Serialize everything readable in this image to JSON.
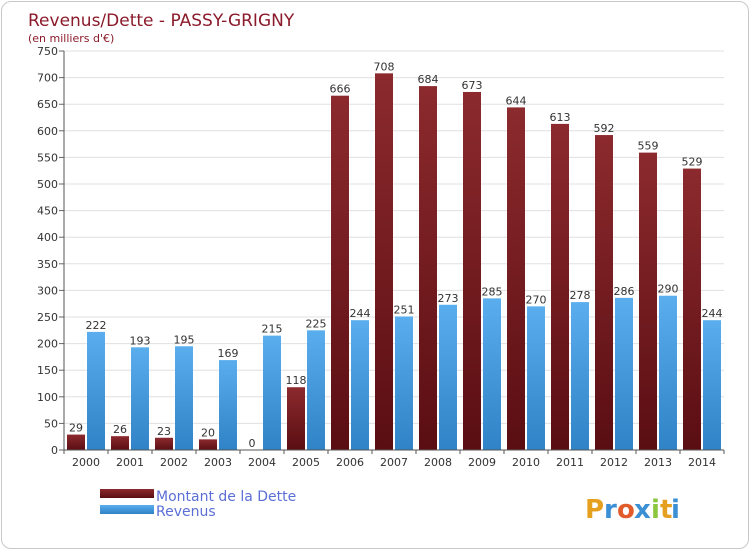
{
  "chart_data": {
    "type": "bar",
    "title": "Revenus/Dette - PASSY-GRIGNY",
    "subtitle": "(en milliers d'€)",
    "categories": [
      "2000",
      "2001",
      "2002",
      "2003",
      "2004",
      "2005",
      "2006",
      "2007",
      "2008",
      "2009",
      "2010",
      "2011",
      "2012",
      "2013",
      "2014"
    ],
    "series": [
      {
        "name": "Montant de la Dette",
        "color": "#7a1c22",
        "values": [
          29,
          26,
          23,
          20,
          0,
          118,
          666,
          708,
          684,
          673,
          644,
          613,
          592,
          559,
          529
        ]
      },
      {
        "name": "Revenus",
        "color": "#3f97db",
        "values": [
          222,
          193,
          195,
          169,
          215,
          225,
          244,
          251,
          273,
          285,
          270,
          278,
          286,
          290,
          244
        ]
      }
    ],
    "ylim": [
      0,
      750
    ],
    "yticks": [
      0,
      50,
      100,
      150,
      200,
      250,
      300,
      350,
      400,
      450,
      500,
      550,
      600,
      650,
      700,
      750
    ],
    "grid": true,
    "legend": "bottom-left"
  },
  "branding": {
    "logo_letters": [
      "P",
      "r",
      "o",
      "x",
      "i",
      "t",
      "i"
    ],
    "logo_colors": [
      "#e6a020",
      "#3b8fd4",
      "#e25b2a",
      "#3b8fd4",
      "#8cc63f",
      "#e6a020",
      "#3b8fd4"
    ]
  }
}
